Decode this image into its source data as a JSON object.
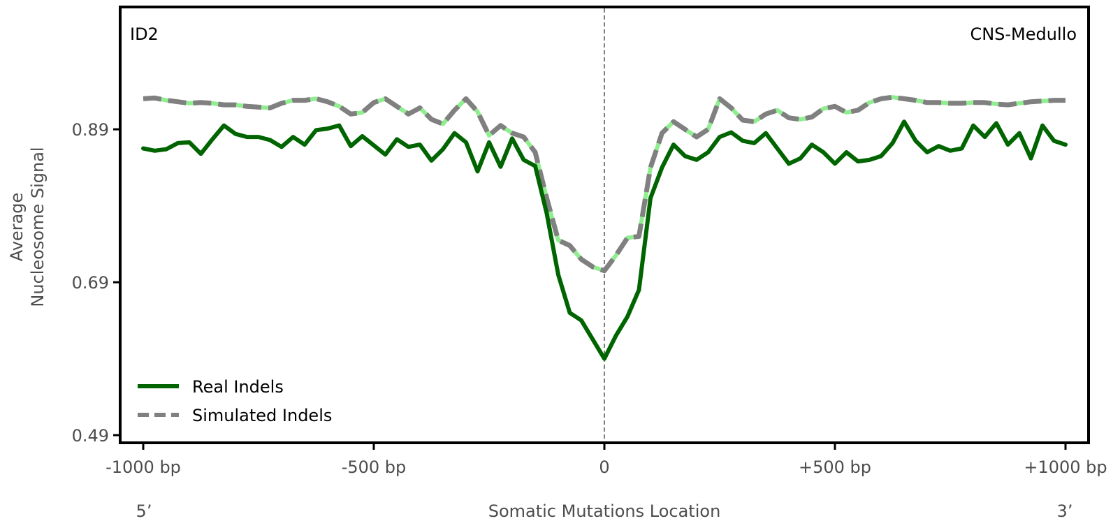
{
  "chart_data": {
    "type": "line",
    "title_left": "ID2",
    "title_right": "CNS-Medullo",
    "xlabel": "Somatic Mutations Location",
    "ylabel_lines": [
      "Average",
      "Nucleosome Signal"
    ],
    "end_labels": {
      "left": "5’",
      "right": "3’"
    },
    "x_ticks": [
      {
        "value": -1000,
        "label": "-1000 bp"
      },
      {
        "value": -500,
        "label": "-500 bp"
      },
      {
        "value": 0,
        "label": "0"
      },
      {
        "value": 500,
        "label": "+500 bp"
      },
      {
        "value": 1000,
        "label": "+1000 bp"
      }
    ],
    "y_ticks": [
      {
        "value": 0.49,
        "label": "0.49"
      },
      {
        "value": 0.69,
        "label": "0.69"
      },
      {
        "value": 0.89,
        "label": "0.89"
      }
    ],
    "xlim": [
      -1050,
      1050
    ],
    "ylim": [
      0.48,
      1.05
    ],
    "grid": false,
    "vertical_reference_line": 0,
    "legend": {
      "position": "lower-left",
      "entries": [
        {
          "label": "Real Indels",
          "series": "real"
        },
        {
          "label": "Simulated Indels",
          "series": "simulated"
        }
      ]
    },
    "series": [
      {
        "id": "real",
        "name": "Real Indels",
        "color": "#006400",
        "style": "solid",
        "x": [
          -1000,
          -975,
          -950,
          -925,
          -900,
          -875,
          -850,
          -825,
          -800,
          -775,
          -750,
          -725,
          -700,
          -675,
          -650,
          -625,
          -600,
          -575,
          -550,
          -525,
          -500,
          -475,
          -450,
          -425,
          -400,
          -375,
          -350,
          -325,
          -300,
          -275,
          -250,
          -225,
          -200,
          -175,
          -150,
          -125,
          -100,
          -75,
          -50,
          -25,
          0,
          25,
          50,
          75,
          100,
          125,
          150,
          175,
          200,
          225,
          250,
          275,
          300,
          325,
          350,
          375,
          400,
          425,
          450,
          475,
          500,
          525,
          550,
          575,
          600,
          625,
          650,
          675,
          700,
          725,
          750,
          775,
          800,
          825,
          850,
          875,
          900,
          925,
          950,
          975,
          1000
        ],
        "y": [
          0.865,
          0.862,
          0.864,
          0.872,
          0.873,
          0.858,
          0.877,
          0.895,
          0.884,
          0.88,
          0.88,
          0.876,
          0.867,
          0.88,
          0.87,
          0.889,
          0.891,
          0.895,
          0.868,
          0.881,
          0.869,
          0.857,
          0.877,
          0.867,
          0.87,
          0.849,
          0.864,
          0.885,
          0.873,
          0.835,
          0.873,
          0.841,
          0.878,
          0.85,
          0.842,
          0.78,
          0.7,
          0.65,
          0.64,
          0.615,
          0.59,
          0.62,
          0.645,
          0.68,
          0.8,
          0.84,
          0.87,
          0.855,
          0.85,
          0.86,
          0.88,
          0.886,
          0.875,
          0.872,
          0.885,
          0.865,
          0.845,
          0.852,
          0.87,
          0.86,
          0.845,
          0.86,
          0.848,
          0.85,
          0.855,
          0.872,
          0.9,
          0.875,
          0.86,
          0.868,
          0.862,
          0.865,
          0.895,
          0.88,
          0.898,
          0.87,
          0.885,
          0.852,
          0.895,
          0.875,
          0.87
        ]
      },
      {
        "id": "simulated",
        "name": "Simulated Indels",
        "color": "#808080",
        "highlight_color": "#90ee90",
        "style": "dashed",
        "x": [
          -1000,
          -975,
          -950,
          -925,
          -900,
          -875,
          -850,
          -825,
          -800,
          -775,
          -750,
          -725,
          -700,
          -675,
          -650,
          -625,
          -600,
          -575,
          -550,
          -525,
          -500,
          -475,
          -450,
          -425,
          -400,
          -375,
          -350,
          -325,
          -300,
          -275,
          -250,
          -225,
          -200,
          -175,
          -150,
          -125,
          -100,
          -75,
          -50,
          -25,
          0,
          25,
          50,
          75,
          100,
          125,
          150,
          175,
          200,
          225,
          250,
          275,
          300,
          325,
          350,
          375,
          400,
          425,
          450,
          475,
          500,
          525,
          550,
          575,
          600,
          625,
          650,
          675,
          700,
          725,
          750,
          775,
          800,
          825,
          850,
          875,
          900,
          925,
          950,
          975,
          1000
        ],
        "y": [
          0.93,
          0.931,
          0.928,
          0.926,
          0.924,
          0.925,
          0.924,
          0.922,
          0.922,
          0.92,
          0.919,
          0.918,
          0.924,
          0.928,
          0.928,
          0.93,
          0.926,
          0.92,
          0.91,
          0.912,
          0.925,
          0.93,
          0.92,
          0.91,
          0.918,
          0.903,
          0.897,
          0.915,
          0.93,
          0.913,
          0.882,
          0.895,
          0.885,
          0.88,
          0.86,
          0.8,
          0.745,
          0.738,
          0.72,
          0.71,
          0.705,
          0.725,
          0.748,
          0.75,
          0.84,
          0.885,
          0.9,
          0.89,
          0.88,
          0.89,
          0.93,
          0.918,
          0.902,
          0.9,
          0.91,
          0.915,
          0.905,
          0.903,
          0.906,
          0.917,
          0.92,
          0.912,
          0.915,
          0.925,
          0.93,
          0.932,
          0.93,
          0.928,
          0.925,
          0.925,
          0.924,
          0.924,
          0.925,
          0.925,
          0.923,
          0.922,
          0.924,
          0.926,
          0.927,
          0.928,
          0.928
        ]
      }
    ]
  }
}
